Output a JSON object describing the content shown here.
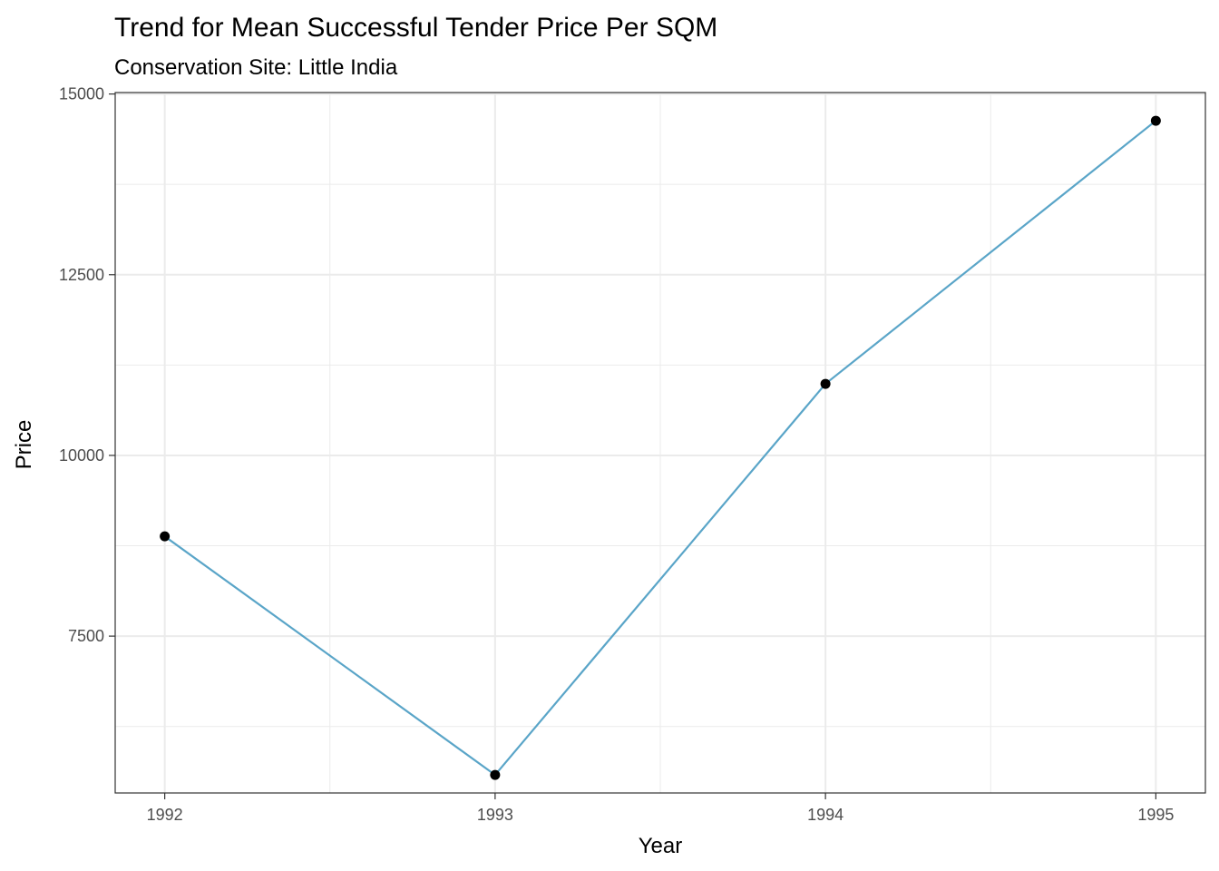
{
  "chart_data": {
    "type": "line",
    "title": "Trend for Mean Successful Tender Price Per SQM",
    "subtitle": "Conservation Site: Little India",
    "xlabel": "Year",
    "ylabel": "Price",
    "x": [
      1992,
      1993,
      1994,
      1995
    ],
    "x_tick_labels": [
      "1992",
      "1993",
      "1994",
      "1995"
    ],
    "y_ticks": [
      7500,
      10000,
      12500,
      15000
    ],
    "y_tick_labels": [
      "7500",
      "10000",
      "12500",
      "15000"
    ],
    "xlim": [
      1991.85,
      1995.15
    ],
    "ylim": [
      5330,
      15020
    ],
    "series": [
      {
        "values": [
          8880,
          5580,
          10990,
          14630
        ]
      }
    ],
    "grid": true,
    "line_color": "#5aa5c8",
    "point_color": "#000000",
    "grid_color": "#ebebeb",
    "panel_border_color": "#333333"
  }
}
